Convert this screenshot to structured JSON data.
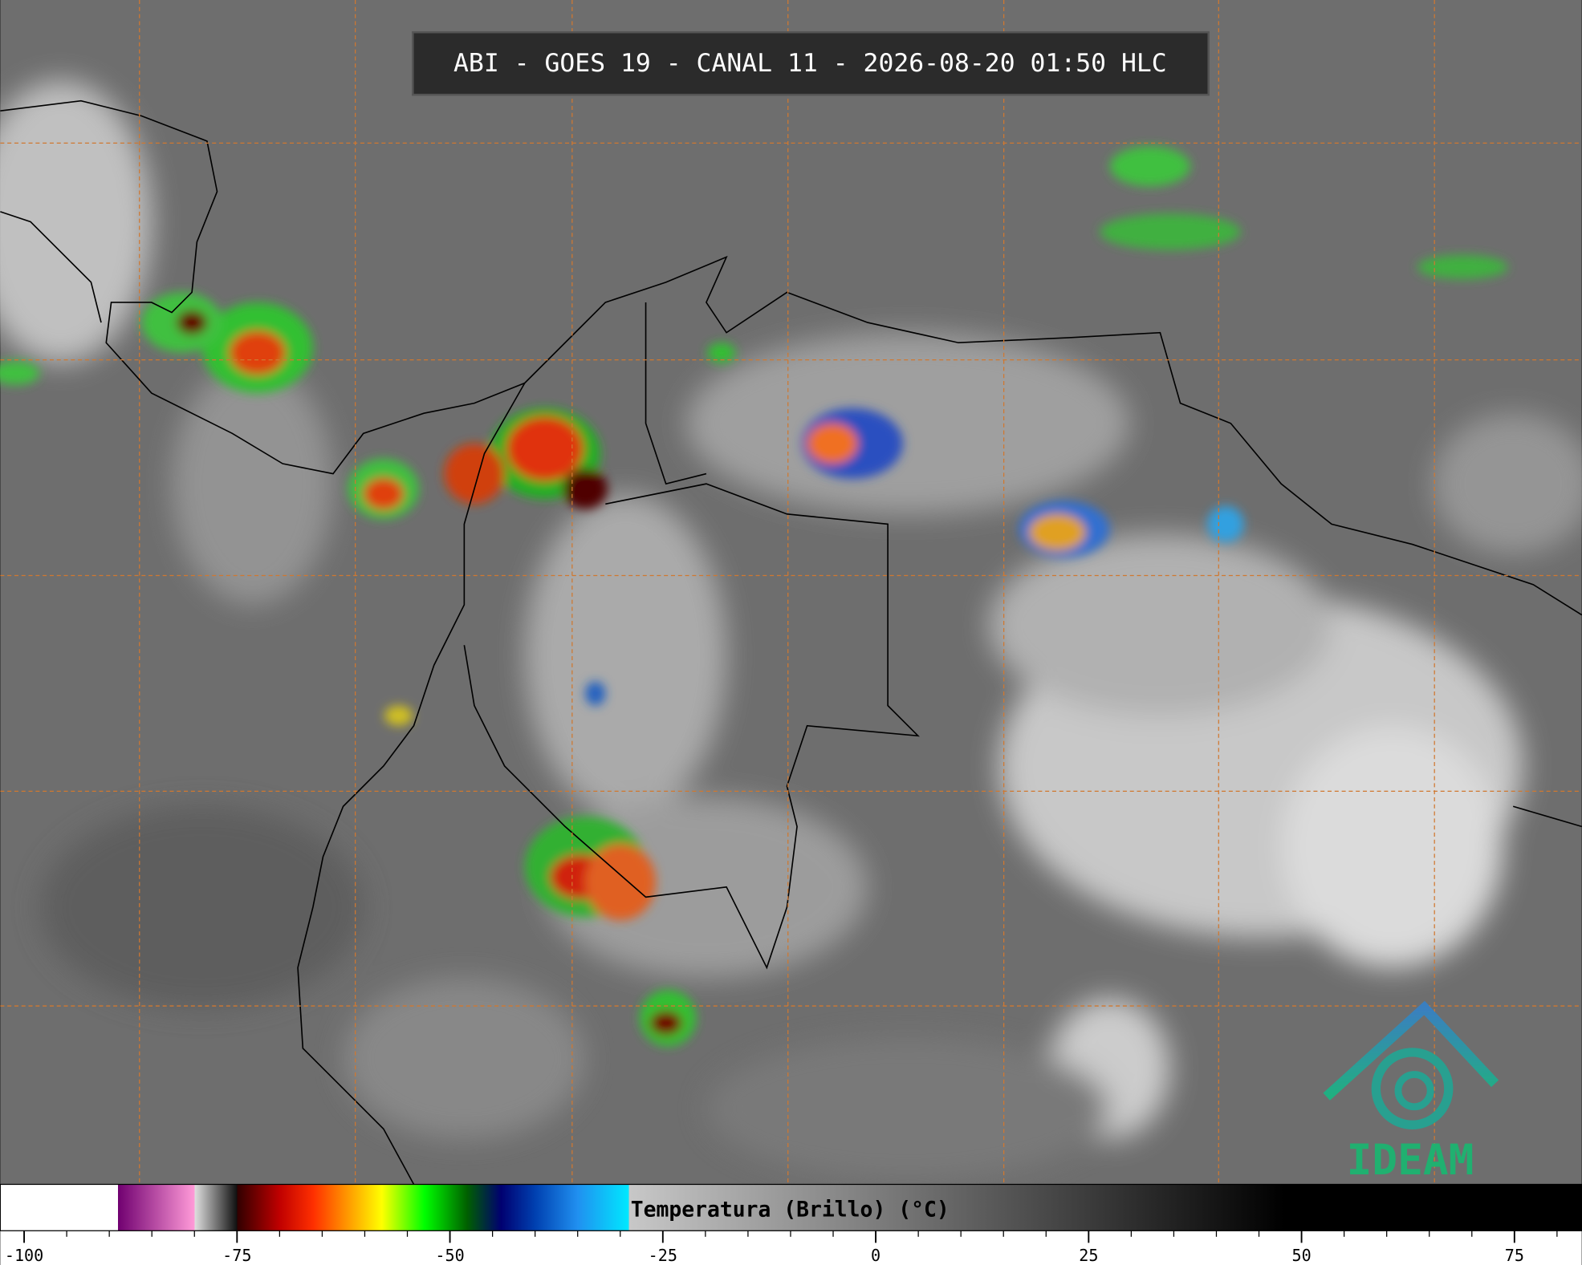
{
  "header": {
    "title": "ABI - GOES 19 - CANAL 11 - 2026-08-20 01:50 HLC"
  },
  "logo": {
    "text": "IDEAM"
  },
  "chart_data": {
    "type": "colorbar",
    "label": "Temperatura (Brillo) (°C)",
    "xlim": [
      -102.8,
      82.9
    ],
    "xticks": [
      -100,
      -75,
      -50,
      -25,
      0,
      25,
      50,
      75
    ],
    "minor_ticks": [
      -95,
      -90,
      -85,
      -80,
      -70,
      -65,
      -60,
      -55,
      -45,
      -40,
      -35,
      -30,
      -20,
      -15,
      -10,
      -5,
      5,
      10,
      15,
      20,
      30,
      35,
      40,
      45,
      55,
      60,
      65,
      70,
      80
    ],
    "colorscale": [
      {
        "value": -102.8,
        "color": "#ffffff"
      },
      {
        "value": -89,
        "color": "#ffffff"
      },
      {
        "value": -89,
        "color": "#700070"
      },
      {
        "value": -80,
        "color": "#ff9ad8"
      },
      {
        "value": -80,
        "color": "#e0e0e0"
      },
      {
        "value": -75,
        "color": "#101010"
      },
      {
        "value": -75,
        "color": "#300000"
      },
      {
        "value": -70,
        "color": "#c00000"
      },
      {
        "value": -66,
        "color": "#ff3000"
      },
      {
        "value": -62,
        "color": "#ff9900"
      },
      {
        "value": -58,
        "color": "#ffff00"
      },
      {
        "value": -53,
        "color": "#00ff00"
      },
      {
        "value": -48,
        "color": "#006000"
      },
      {
        "value": -44,
        "color": "#000070"
      },
      {
        "value": -40,
        "color": "#0040b0"
      },
      {
        "value": -35,
        "color": "#2090f0"
      },
      {
        "value": -29,
        "color": "#00e8ff"
      },
      {
        "value": -29,
        "color": "#c8c8c8"
      },
      {
        "value": 48,
        "color": "#000000"
      },
      {
        "value": 82.9,
        "color": "#000000"
      }
    ]
  }
}
